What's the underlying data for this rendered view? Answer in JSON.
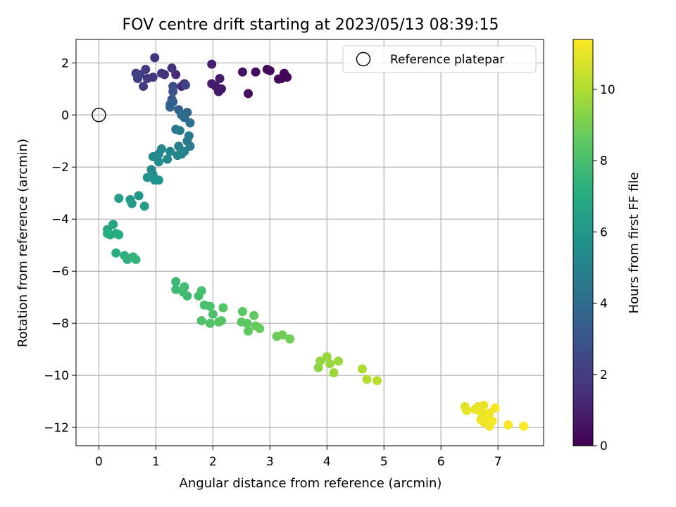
{
  "chart_data": {
    "type": "scatter",
    "title": "FOV centre drift starting at 2023/05/13 08:39:15",
    "xlabel": "Angular distance from reference (arcmin)",
    "ylabel": "Rotation from reference (arcmin)",
    "colorbar_label": "Hours from first FF file",
    "xlim": [
      -0.4,
      7.8
    ],
    "ylim": [
      -12.7,
      2.9
    ],
    "clim": [
      0,
      11.4
    ],
    "x_ticks": [
      0,
      1,
      2,
      3,
      4,
      5,
      6,
      7
    ],
    "x_tick_labels": [
      "0",
      "1",
      "2",
      "3",
      "4",
      "5",
      "6",
      "7"
    ],
    "y_ticks": [
      2,
      0,
      -2,
      -4,
      -6,
      -8,
      -10,
      -12
    ],
    "y_tick_labels": [
      "2",
      "0",
      "−2",
      "−4",
      "−6",
      "−8",
      "−10",
      "−12"
    ],
    "c_ticks": [
      0,
      2,
      4,
      6,
      8,
      10
    ],
    "c_tick_labels": [
      "0",
      "2",
      "4",
      "6",
      "8",
      "10"
    ],
    "grid": true,
    "legend_position": "top-right",
    "colormap": [
      "#440154",
      "#472d7b",
      "#3b528b",
      "#2c728e",
      "#21918c",
      "#28ae80",
      "#5ec962",
      "#addc30",
      "#fde725"
    ],
    "reference": {
      "label": "Reference platepar",
      "x": 0,
      "y": 0
    },
    "points": [
      [
        3.3,
        1.45,
        0.05
      ],
      [
        3.2,
        1.4,
        0.1
      ],
      [
        3.25,
        1.6,
        0.15
      ],
      [
        3.15,
        1.38,
        0.2
      ],
      [
        3.0,
        1.7,
        0.25
      ],
      [
        2.95,
        1.75,
        0.3
      ],
      [
        2.75,
        1.65,
        0.4
      ],
      [
        2.62,
        0.82,
        0.5
      ],
      [
        2.52,
        1.65,
        0.6
      ],
      [
        2.15,
        1.0,
        0.7
      ],
      [
        2.1,
        0.9,
        0.75
      ],
      [
        2.05,
        1.1,
        0.8
      ],
      [
        1.98,
        1.2,
        0.85
      ],
      [
        2.12,
        1.4,
        0.9
      ],
      [
        1.98,
        1.95,
        1.0
      ],
      [
        1.5,
        1.2,
        1.2
      ],
      [
        1.45,
        1.1,
        1.3
      ],
      [
        1.35,
        1.55,
        1.4
      ],
      [
        1.28,
        1.8,
        1.5
      ],
      [
        1.15,
        1.55,
        1.6
      ],
      [
        1.1,
        1.6,
        1.7
      ],
      [
        0.98,
        2.2,
        1.75
      ],
      [
        0.95,
        1.45,
        1.8
      ],
      [
        0.85,
        1.4,
        1.9
      ],
      [
        0.82,
        1.75,
        1.95
      ],
      [
        0.78,
        1.1,
        2.0
      ],
      [
        0.72,
        1.55,
        2.05
      ],
      [
        0.68,
        1.4,
        2.1
      ],
      [
        0.65,
        1.6,
        2.2
      ],
      [
        1.52,
        1.15,
        2.4
      ],
      [
        1.3,
        1.1,
        2.6
      ],
      [
        1.3,
        0.9,
        2.8
      ],
      [
        1.28,
        0.6,
        3.0
      ],
      [
        1.25,
        0.4,
        3.2
      ],
      [
        1.4,
        0.2,
        3.4
      ],
      [
        1.3,
        0.5,
        3.5
      ],
      [
        1.25,
        0.3,
        3.6
      ],
      [
        1.55,
        0.1,
        3.8
      ],
      [
        1.5,
        -0.1,
        4.0
      ],
      [
        1.6,
        -0.3,
        4.1
      ],
      [
        1.45,
        0.0,
        4.2
      ],
      [
        1.35,
        -0.55,
        4.4
      ],
      [
        1.58,
        -0.8,
        4.5
      ],
      [
        1.55,
        -1.0,
        4.6
      ],
      [
        1.6,
        -1.2,
        4.7
      ],
      [
        1.42,
        -0.6,
        4.8
      ],
      [
        1.4,
        -1.2,
        4.9
      ],
      [
        1.45,
        -1.5,
        5.0
      ],
      [
        1.5,
        -1.4,
        5.05
      ],
      [
        1.38,
        -1.55,
        5.1
      ],
      [
        1.25,
        -1.4,
        5.15
      ],
      [
        1.1,
        -1.3,
        5.2
      ],
      [
        1.2,
        -1.7,
        5.3
      ],
      [
        1.05,
        -1.5,
        5.35
      ],
      [
        0.95,
        -1.6,
        5.4
      ],
      [
        1.05,
        -1.8,
        5.45
      ],
      [
        0.92,
        -2.1,
        5.5
      ],
      [
        0.95,
        -2.3,
        5.6
      ],
      [
        0.98,
        -2.5,
        5.7
      ],
      [
        1.05,
        -2.5,
        5.75
      ],
      [
        0.85,
        -2.4,
        5.8
      ],
      [
        0.7,
        -3.1,
        6.0
      ],
      [
        0.55,
        -3.25,
        6.1
      ],
      [
        0.58,
        -3.4,
        6.2
      ],
      [
        0.35,
        -3.2,
        6.3
      ],
      [
        0.8,
        -3.5,
        6.4
      ],
      [
        0.15,
        -4.4,
        6.6
      ],
      [
        0.25,
        -4.2,
        6.7
      ],
      [
        0.2,
        -4.6,
        6.8
      ],
      [
        0.3,
        -4.55,
        6.9
      ],
      [
        0.35,
        -4.6,
        7.0
      ],
      [
        0.15,
        -4.55,
        7.05
      ],
      [
        0.3,
        -5.3,
        7.1
      ],
      [
        0.45,
        -5.4,
        7.2
      ],
      [
        0.5,
        -5.55,
        7.3
      ],
      [
        0.6,
        -5.45,
        7.4
      ],
      [
        0.65,
        -5.55,
        7.5
      ],
      [
        1.35,
        -6.4,
        7.6
      ],
      [
        1.35,
        -6.7,
        7.7
      ],
      [
        1.5,
        -6.6,
        7.75
      ],
      [
        1.55,
        -6.95,
        7.8
      ],
      [
        1.48,
        -6.8,
        7.85
      ],
      [
        1.75,
        -6.95,
        7.9
      ],
      [
        1.8,
        -6.75,
        7.95
      ],
      [
        1.85,
        -7.3,
        8.0
      ],
      [
        1.95,
        -7.35,
        8.05
      ],
      [
        2.0,
        -7.65,
        8.1
      ],
      [
        1.8,
        -7.9,
        8.15
      ],
      [
        1.95,
        -8.0,
        8.2
      ],
      [
        2.1,
        -7.95,
        8.25
      ],
      [
        2.15,
        -7.9,
        8.3
      ],
      [
        2.18,
        -7.4,
        8.35
      ],
      [
        2.52,
        -7.55,
        8.4
      ],
      [
        2.5,
        -7.95,
        8.45
      ],
      [
        2.6,
        -8.0,
        8.5
      ],
      [
        2.62,
        -8.3,
        8.55
      ],
      [
        2.72,
        -7.7,
        8.6
      ],
      [
        2.75,
        -8.1,
        8.65
      ],
      [
        2.82,
        -8.2,
        8.7
      ],
      [
        3.12,
        -8.5,
        8.8
      ],
      [
        3.22,
        -8.45,
        8.85
      ],
      [
        3.35,
        -8.6,
        8.9
      ],
      [
        3.85,
        -9.7,
        9.4
      ],
      [
        3.88,
        -9.45,
        9.5
      ],
      [
        4.0,
        -9.28,
        9.55
      ],
      [
        4.05,
        -9.55,
        9.6
      ],
      [
        4.2,
        -9.45,
        9.65
      ],
      [
        4.12,
        -9.9,
        9.7
      ],
      [
        4.62,
        -9.75,
        10.0
      ],
      [
        4.7,
        -10.15,
        10.1
      ],
      [
        4.88,
        -10.2,
        10.2
      ],
      [
        6.42,
        -11.2,
        10.9
      ],
      [
        6.45,
        -11.35,
        10.95
      ],
      [
        6.6,
        -11.3,
        11.0
      ],
      [
        6.65,
        -11.2,
        11.0
      ],
      [
        6.7,
        -11.4,
        11.05
      ],
      [
        6.75,
        -11.15,
        11.05
      ],
      [
        6.78,
        -11.5,
        11.1
      ],
      [
        6.8,
        -11.65,
        11.1
      ],
      [
        6.85,
        -11.45,
        11.15
      ],
      [
        6.7,
        -11.7,
        11.15
      ],
      [
        6.75,
        -11.8,
        11.2
      ],
      [
        6.85,
        -11.95,
        11.2
      ],
      [
        6.9,
        -11.75,
        11.25
      ],
      [
        6.95,
        -11.25,
        11.25
      ],
      [
        7.18,
        -11.9,
        11.3
      ],
      [
        7.45,
        -11.95,
        11.35
      ]
    ]
  }
}
